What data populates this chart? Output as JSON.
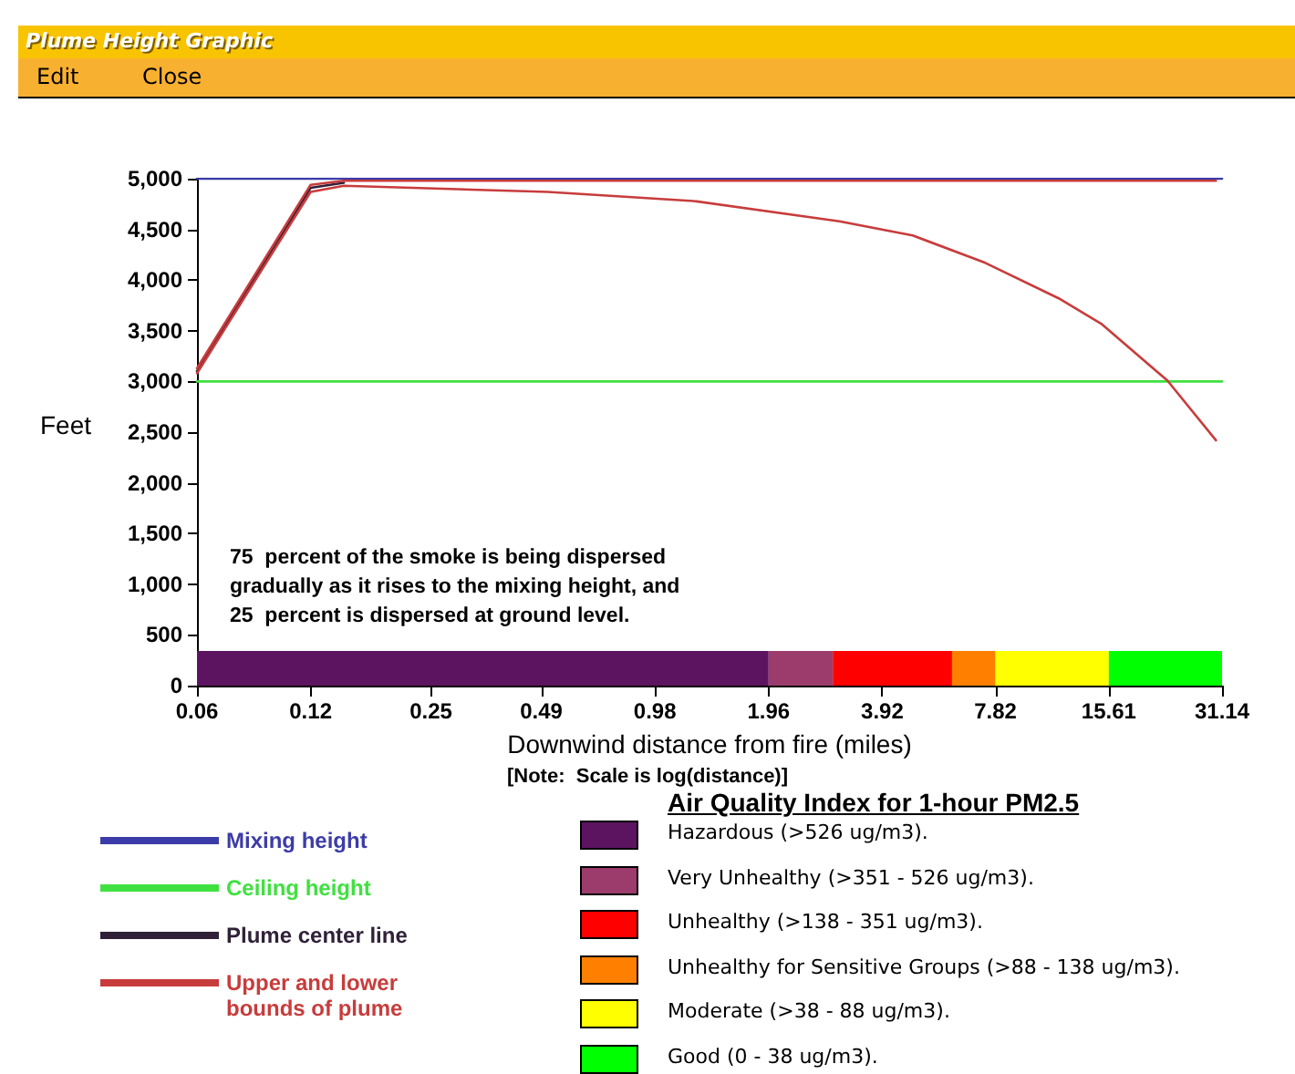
{
  "chart_data": {
    "type": "line",
    "title": "Plume Height Graphic",
    "xlabel": "Downwind distance from fire (miles)",
    "ylabel": "Feet",
    "legend": "bottom",
    "legend_title": "Air Quality Index for 1-hour PM2.5",
    "log": "x",
    "xlim": [
      0.06,
      31.14
    ],
    "xticks": [
      0.06,
      0.12,
      0.25,
      0.49,
      0.98,
      1.96,
      3.92,
      7.82,
      15.61,
      31.14
    ],
    "ylim": [
      0,
      5000
    ],
    "yticks": [
      0,
      500,
      {
        "value": 1000,
        "label": "1,000"
      },
      {
        "value": 1500,
        "label": "1,500"
      },
      {
        "value": 2000,
        "label": "2,000"
      },
      {
        "value": 2500,
        "label": "2,500"
      },
      {
        "value": 3000,
        "label": "3,000"
      },
      {
        "value": 3500,
        "label": "3,500"
      },
      {
        "value": 4000,
        "label": "4,000"
      },
      {
        "value": 4500,
        "label": "4,500"
      },
      {
        "value": 5000,
        "label": "5,000"
      }
    ],
    "series": [
      {
        "name": "Mixing height",
        "color": "#3c3ca8",
        "x": [
          0.06,
          31.14
        ],
        "values": [
          5000,
          5000
        ]
      },
      {
        "name": "Ceiling height",
        "color": "#40e040",
        "x": [
          0.06,
          31.14
        ],
        "values": [
          3000,
          3000
        ]
      },
      {
        "name": "Plume center line",
        "color": "#302038",
        "x": [
          0.06,
          0.12,
          0.147
        ],
        "values": [
          3100,
          4910,
          4960
        ]
      },
      {
        "name": "Upper and lower bounds of plume",
        "color": "#c83c3c",
        "x": [
          0.06,
          0.12,
          0.147,
          30
        ],
        "values": [
          3130,
          4940,
          4980,
          4980
        ]
      },
      {
        "color": "#c83c3c",
        "x": [
          0.06,
          0.12,
          0.147,
          0.51,
          1.24,
          3.02,
          4.72,
          7.35,
          11.5,
          14.9,
          22.3,
          30
        ],
        "values": [
          3080,
          4870,
          4930,
          4870,
          4780,
          4580,
          4440,
          4170,
          3820,
          3570,
          3010,
          2420
        ]
      }
    ],
    "bands": [
      {
        "axis": "x",
        "from": 0.06,
        "to": 1.96,
        "color": "#5c1460",
        "label": "Hazardous (>526 ug/m3)."
      },
      {
        "axis": "x",
        "from": 1.96,
        "to": 2.9,
        "color": "#9c3c6c",
        "label": "Very Unhealthy (>351 - 526 ug/m3)."
      },
      {
        "axis": "x",
        "from": 2.9,
        "to": 6.0,
        "color": "#ff0000",
        "label": "Unhealthy (>138 - 351 ug/m3)."
      },
      {
        "axis": "x",
        "from": 6.0,
        "to": 7.82,
        "color": "#ff8000",
        "label": "Unhealthy for Sensitive Groups (>88 - 138 ug/m3)."
      },
      {
        "axis": "x",
        "from": 7.82,
        "to": 15.61,
        "color": "#ffff00",
        "label": "Moderate (>38 - 88 ug/m3)."
      },
      {
        "axis": "x",
        "from": 15.61,
        "to": 31.14,
        "color": "#00ff00",
        "label": "Good (0 - 38 ug/m3)."
      }
    ],
    "annotations": [
      "Edit",
      "Close",
      "75  percent of the smoke is being dispersed\ngradually as it rises to the mixing height, and\n25  percent is dispersed at ground level.",
      "[Note:  Scale is log(distance)]"
    ]
  }
}
